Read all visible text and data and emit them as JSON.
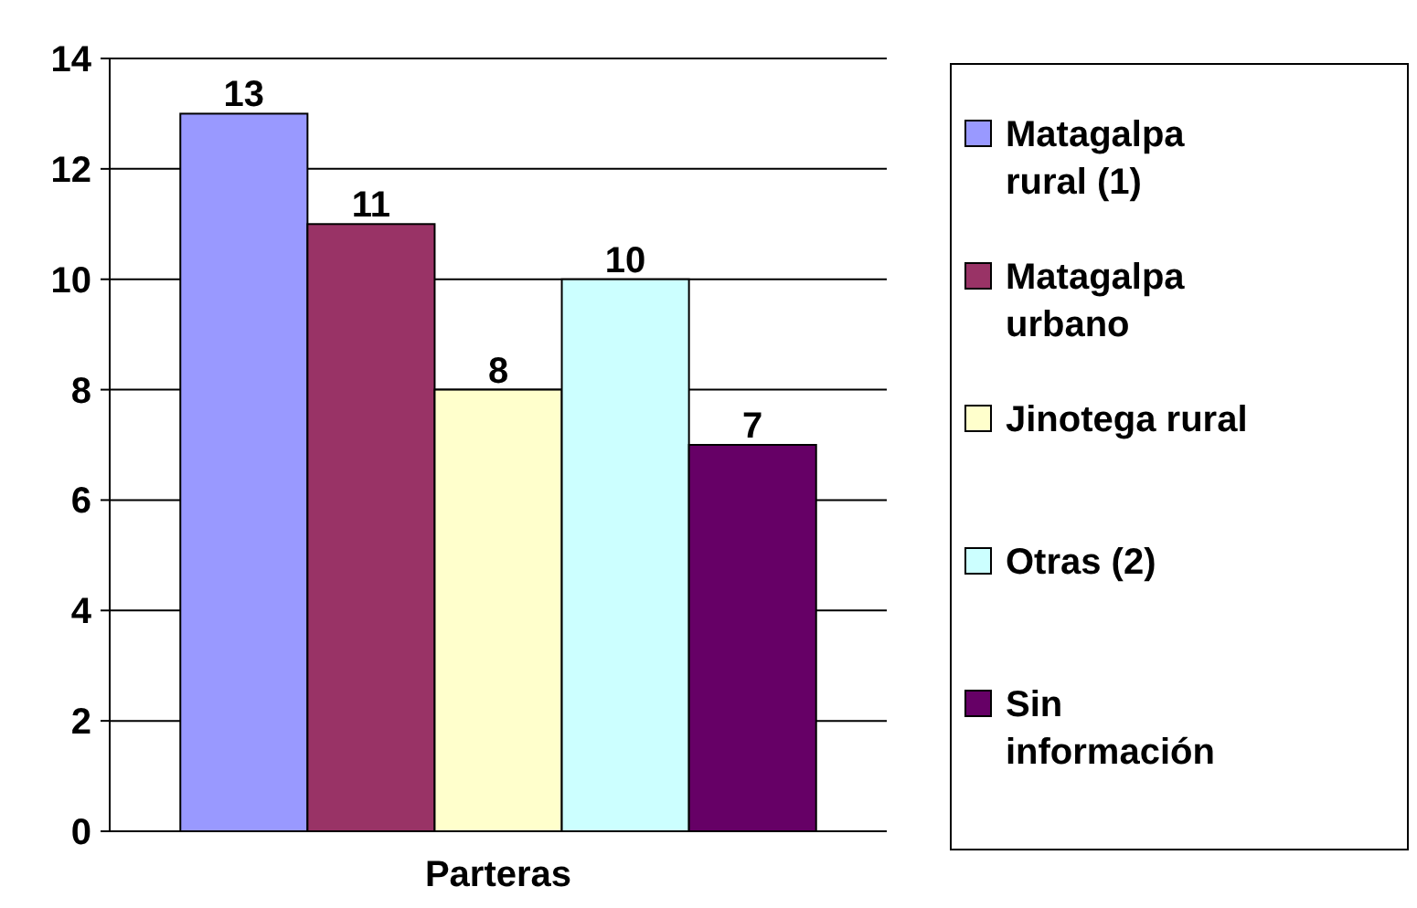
{
  "chart_data": {
    "type": "bar",
    "categories": [
      "Parteras"
    ],
    "series": [
      {
        "name": "Matagalpa rural (1)",
        "color": "#9999ff",
        "values": [
          13
        ]
      },
      {
        "name": "Matagalpa urbano",
        "color": "#993366",
        "values": [
          11
        ]
      },
      {
        "name": "Jinotega rural",
        "color": "#ffffcc",
        "values": [
          8
        ]
      },
      {
        "name": "Otras (2)",
        "color": "#ccffff",
        "values": [
          10
        ]
      },
      {
        "name": "Sin información",
        "color": "#660066",
        "values": [
          7
        ]
      }
    ],
    "ylim": [
      0,
      14
    ],
    "yticks": [
      0,
      2,
      4,
      6,
      8,
      10,
      12,
      14
    ],
    "grid": "y",
    "legend": "right",
    "data_labels": true
  }
}
